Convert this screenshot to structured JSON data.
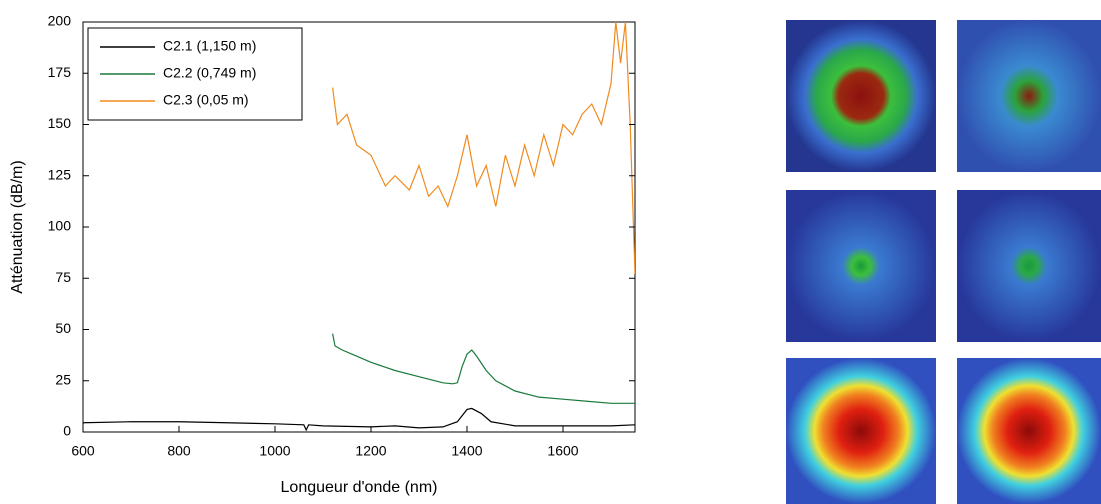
{
  "chart_data": {
    "type": "line",
    "xlabel": "Longueur d'onde (nm)",
    "ylabel": "Atténuation (dB/m)",
    "xlim": [
      600,
      1750
    ],
    "ylim": [
      0,
      200
    ],
    "xticks": [
      600,
      800,
      1000,
      1200,
      1400,
      1600
    ],
    "yticks": [
      0,
      25,
      50,
      75,
      100,
      125,
      150,
      175,
      200
    ],
    "legend": "upper left",
    "series": [
      {
        "name": "C2.1 (1,150 m)",
        "color": "#000000",
        "x": [
          600,
          700,
          800,
          900,
          1000,
          1060,
          1065,
          1070,
          1100,
          1200,
          1250,
          1300,
          1350,
          1380,
          1400,
          1410,
          1430,
          1450,
          1500,
          1600,
          1700,
          1750
        ],
        "values": [
          4.5,
          5,
          5,
          4.5,
          4,
          3.5,
          1,
          3.5,
          3,
          2.5,
          3,
          2,
          2.5,
          5,
          11,
          11.5,
          9,
          5,
          3,
          3,
          3,
          3.5
        ]
      },
      {
        "name": "C2.2 (0,749 m)",
        "color": "#1a7a3c",
        "x": [
          1120,
          1125,
          1140,
          1160,
          1200,
          1250,
          1300,
          1350,
          1370,
          1380,
          1390,
          1400,
          1410,
          1420,
          1440,
          1460,
          1500,
          1550,
          1600,
          1650,
          1700,
          1740,
          1750
        ],
        "values": [
          48,
          42,
          40,
          38,
          34,
          30,
          27,
          24,
          23.5,
          24,
          32,
          38,
          40,
          37,
          30,
          25,
          20,
          17,
          16,
          15,
          14,
          14,
          14
        ]
      },
      {
        "name": "C2.3 (0,05 m)",
        "color": "#f08a1e",
        "x": [
          1120,
          1130,
          1150,
          1170,
          1200,
          1230,
          1250,
          1280,
          1300,
          1320,
          1340,
          1360,
          1380,
          1400,
          1420,
          1440,
          1460,
          1480,
          1500,
          1520,
          1540,
          1560,
          1580,
          1600,
          1620,
          1640,
          1660,
          1680,
          1700,
          1710,
          1720,
          1730,
          1740,
          1750
        ],
        "values": [
          168,
          150,
          155,
          140,
          135,
          120,
          125,
          118,
          130,
          115,
          120,
          110,
          125,
          145,
          120,
          130,
          110,
          135,
          120,
          140,
          125,
          145,
          130,
          150,
          145,
          155,
          160,
          150,
          170,
          200,
          180,
          200,
          150,
          77
        ]
      }
    ]
  }
}
